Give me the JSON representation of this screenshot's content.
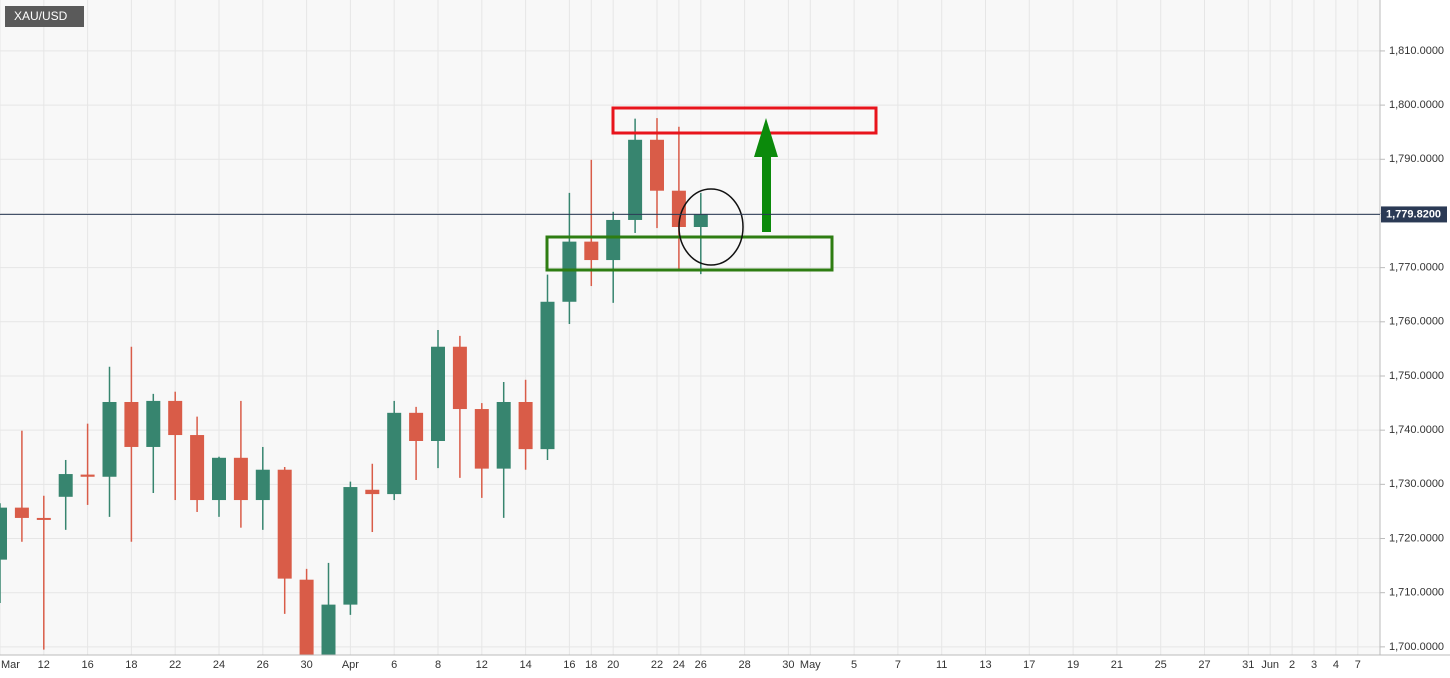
{
  "chart_data": {
    "type": "candlestick",
    "title": "XAU/USD",
    "categories": [
      "Mar",
      null,
      "12",
      null,
      "16",
      null,
      "18",
      null,
      "22",
      null,
      "24",
      null,
      "26",
      null,
      "30",
      null,
      "Apr",
      null,
      "6",
      null,
      "8",
      null,
      "12",
      null,
      "14",
      null,
      "16",
      "18",
      "20",
      null,
      "22",
      "24",
      "26",
      null,
      "28",
      null,
      "30",
      "May",
      null,
      "5",
      null,
      "7",
      null,
      "11",
      null,
      "13",
      null,
      "17",
      null,
      "19",
      null,
      "21",
      null,
      "25",
      null,
      "27",
      null,
      "31",
      "Jun",
      "2",
      "3",
      "4",
      "7"
    ],
    "open": [
      1716.1,
      1725.7,
      1723.8,
      1727.7,
      1731.8,
      1731.4,
      1745.2,
      1736.9,
      1745.4,
      1739.1,
      1727.1,
      1734.9,
      1727.1,
      1732.7,
      1712.4,
      1697.0,
      1707.8,
      1729.0,
      1728.2,
      1743.2,
      1738.0,
      1755.4,
      1743.9,
      1732.9,
      1745.2,
      1736.5,
      1763.7,
      1774.8,
      1771.4,
      1778.8,
      1793.6,
      1784.2,
      1777.5,
      null,
      null,
      null,
      null,
      null,
      null,
      null,
      null,
      null,
      null,
      null,
      null,
      null,
      null,
      null,
      null,
      null,
      null,
      null,
      null,
      null,
      null,
      null,
      null,
      null,
      null,
      null,
      null,
      null,
      null
    ],
    "high": [
      1726.5,
      1739.9,
      1727.9,
      1734.5,
      1741.2,
      1751.7,
      1755.4,
      1746.7,
      1747.1,
      1742.5,
      1735.1,
      1745.4,
      1736.9,
      1733.2,
      1714.4,
      1715.5,
      1730.5,
      1733.8,
      1745.4,
      1744.3,
      1758.5,
      1757.4,
      1745.0,
      1748.9,
      1749.3,
      1768.7,
      1783.8,
      1789.9,
      1780.3,
      1797.5,
      1797.6,
      1796.0,
      1783.8,
      null,
      null,
      null,
      null,
      null,
      null,
      null,
      null,
      null,
      null,
      null,
      null,
      null,
      null,
      null,
      null,
      null,
      null,
      null,
      null,
      null,
      null,
      null,
      null,
      null,
      null,
      null,
      null,
      null,
      null
    ],
    "low": [
      1708.1,
      1719.4,
      1699.5,
      1721.6,
      1726.2,
      1724.0,
      1719.4,
      1728.4,
      1727.1,
      1724.9,
      1724.0,
      1722.0,
      1721.6,
      1706.1,
      1695.0,
      1695.0,
      1705.9,
      1721.2,
      1727.1,
      1730.8,
      1733.0,
      1731.2,
      1727.5,
      1723.8,
      1732.7,
      1734.5,
      1759.6,
      1766.6,
      1763.5,
      1776.4,
      1777.3,
      1769.6,
      1768.8,
      null,
      null,
      null,
      null,
      null,
      null,
      null,
      null,
      null,
      null,
      null,
      null,
      null,
      null,
      null,
      null,
      null,
      null,
      null,
      null,
      null,
      null,
      null,
      null,
      null,
      null,
      null,
      null,
      null,
      null
    ],
    "close": [
      1725.7,
      1723.8,
      1723.5,
      1731.9,
      1731.4,
      1745.2,
      1736.9,
      1745.4,
      1739.1,
      1727.1,
      1734.9,
      1727.1,
      1732.7,
      1712.6,
      1698.0,
      1707.8,
      1729.5,
      1728.2,
      1743.2,
      1738.0,
      1755.4,
      1743.9,
      1732.9,
      1745.2,
      1736.5,
      1763.7,
      1774.8,
      1771.4,
      1778.8,
      1793.6,
      1784.2,
      1777.5,
      1779.8,
      null,
      null,
      null,
      null,
      null,
      null,
      null,
      null,
      null,
      null,
      null,
      null,
      null,
      null,
      null,
      null,
      null,
      null,
      null,
      null,
      null,
      null,
      null,
      null,
      null,
      null,
      null,
      null,
      null,
      null
    ],
    "up_color": "#37856f",
    "down_color": "#d95c48",
    "ylim": [
      1698.5,
      1819.4
    ],
    "yticks": [
      {
        "value": 1700,
        "label": "1,700.0000"
      },
      {
        "value": 1710,
        "label": "1,710.0000"
      },
      {
        "value": 1720,
        "label": "1,720.0000"
      },
      {
        "value": 1730,
        "label": "1,730.0000"
      },
      {
        "value": 1740,
        "label": "1,740.0000"
      },
      {
        "value": 1750,
        "label": "1,750.0000"
      },
      {
        "value": 1760,
        "label": "1,760.0000"
      },
      {
        "value": 1770,
        "label": "1,770.0000"
      },
      {
        "value": 1780,
        "label": "1,780.0000"
      },
      {
        "value": 1790,
        "label": "1,790.0000"
      },
      {
        "value": 1800,
        "label": "1,800.0000"
      },
      {
        "value": 1810,
        "label": "1,810.0000"
      }
    ],
    "last_price": {
      "value": 1779.82,
      "label": "1,779.8200"
    },
    "grid": true
  }
}
